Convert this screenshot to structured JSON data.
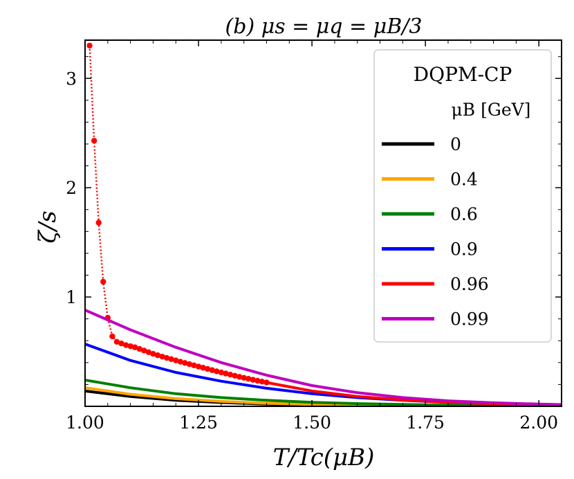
{
  "chart_data": {
    "type": "line",
    "title": "(b) μs = μq = μB/3",
    "xlabel": "T/Tc(μB)",
    "ylabel": "ζ/s",
    "xlim": [
      1.0,
      2.05
    ],
    "ylim": [
      0.0,
      3.35
    ],
    "xticks": [
      1.0,
      1.25,
      1.5,
      1.75,
      2.0
    ],
    "xtick_labels": [
      "1.00",
      "1.25",
      "1.50",
      "1.75",
      "2.00"
    ],
    "yticks": [
      1,
      2,
      3
    ],
    "ytick_labels": [
      "1",
      "2",
      "3"
    ],
    "grid": false,
    "legend": {
      "title": "DQPM-CP",
      "subtitle": "μB [GeV]",
      "placement": "upper right"
    },
    "series": [
      {
        "name": "0",
        "color": "#000000",
        "style": "solid",
        "x": [
          1.0,
          1.1,
          1.2,
          1.3,
          1.4,
          1.5,
          1.6,
          1.7,
          1.8,
          1.9,
          2.0,
          2.05
        ],
        "y": [
          0.14,
          0.09,
          0.055,
          0.035,
          0.02,
          0.012,
          0.008,
          0.005,
          0.003,
          0.002,
          0.0015,
          0.001
        ]
      },
      {
        "name": "0.4",
        "color": "#FFA500",
        "style": "solid",
        "x": [
          1.0,
          1.1,
          1.2,
          1.3,
          1.4,
          1.5,
          1.6,
          1.7,
          1.8,
          1.9,
          2.0,
          2.05
        ],
        "y": [
          0.17,
          0.11,
          0.07,
          0.045,
          0.028,
          0.017,
          0.011,
          0.007,
          0.004,
          0.003,
          0.002,
          0.0015
        ]
      },
      {
        "name": "0.6",
        "color": "#008000",
        "style": "solid",
        "x": [
          1.0,
          1.1,
          1.2,
          1.3,
          1.4,
          1.5,
          1.6,
          1.7,
          1.8,
          1.9,
          2.0,
          2.05
        ],
        "y": [
          0.24,
          0.17,
          0.115,
          0.08,
          0.055,
          0.037,
          0.025,
          0.017,
          0.011,
          0.008,
          0.005,
          0.004
        ]
      },
      {
        "name": "0.9",
        "color": "#0000FF",
        "style": "solid",
        "x": [
          1.0,
          1.1,
          1.2,
          1.3,
          1.4,
          1.5,
          1.6,
          1.7,
          1.8,
          1.9,
          2.0,
          2.05
        ],
        "y": [
          0.57,
          0.42,
          0.31,
          0.23,
          0.165,
          0.115,
          0.08,
          0.055,
          0.036,
          0.023,
          0.015,
          0.012
        ]
      },
      {
        "name": "0.96",
        "color": "#FF0000",
        "style": "dotted",
        "marker": "circle",
        "x": [
          1.01,
          1.02,
          1.03,
          1.04,
          1.05,
          1.06,
          1.07,
          1.08,
          1.09,
          1.1,
          1.11,
          1.12,
          1.13,
          1.14,
          1.15,
          1.16,
          1.17,
          1.18,
          1.19,
          1.2,
          1.21,
          1.22,
          1.23,
          1.24,
          1.25,
          1.26,
          1.27,
          1.28,
          1.29,
          1.3,
          1.31,
          1.32,
          1.33,
          1.34,
          1.35,
          1.36,
          1.37,
          1.38,
          1.39,
          1.4
        ],
        "y": [
          3.3,
          2.43,
          1.68,
          1.14,
          0.81,
          0.64,
          0.59,
          0.575,
          0.56,
          0.55,
          0.54,
          0.525,
          0.51,
          0.495,
          0.48,
          0.467,
          0.455,
          0.443,
          0.432,
          0.42,
          0.408,
          0.397,
          0.386,
          0.375,
          0.364,
          0.353,
          0.342,
          0.331,
          0.32,
          0.31,
          0.3,
          0.29,
          0.28,
          0.27,
          0.261,
          0.252,
          0.243,
          0.234,
          0.226,
          0.218
        ]
      },
      {
        "name": "0.96",
        "color": "#FF0000",
        "style": "solid",
        "x": [
          1.4,
          1.5,
          1.6,
          1.7,
          1.8,
          1.9,
          2.0,
          2.05
        ],
        "y": [
          0.218,
          0.14,
          0.09,
          0.058,
          0.037,
          0.024,
          0.016,
          0.013
        ]
      },
      {
        "name": "0.99",
        "color": "#BF00BF",
        "style": "solid",
        "x": [
          1.0,
          1.1,
          1.2,
          1.3,
          1.4,
          1.5,
          1.6,
          1.7,
          1.8,
          1.9,
          2.0,
          2.05
        ],
        "y": [
          0.88,
          0.7,
          0.54,
          0.4,
          0.285,
          0.19,
          0.125,
          0.08,
          0.05,
          0.032,
          0.02,
          0.016
        ]
      }
    ],
    "legend_entries": [
      {
        "label": "0",
        "color": "#000000"
      },
      {
        "label": "0.4",
        "color": "#FFA500"
      },
      {
        "label": "0.6",
        "color": "#008000"
      },
      {
        "label": "0.9",
        "color": "#0000FF"
      },
      {
        "label": "0.96",
        "color": "#FF0000"
      },
      {
        "label": "0.99",
        "color": "#BF00BF"
      }
    ]
  }
}
